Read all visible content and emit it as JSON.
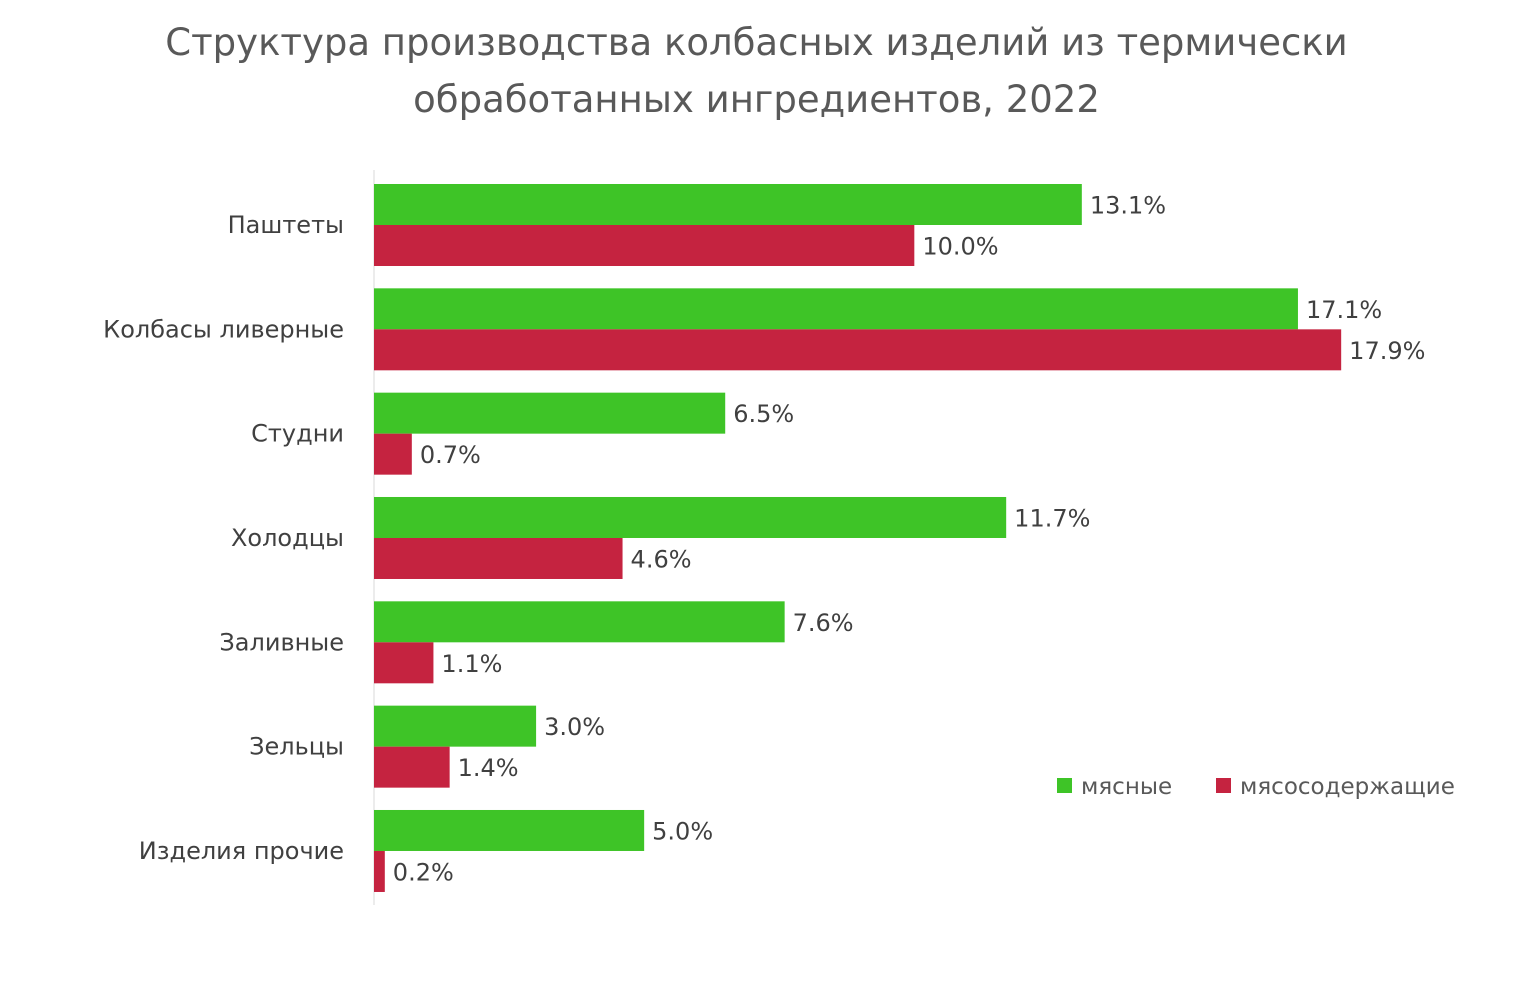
{
  "chart_data": {
    "type": "bar",
    "orientation": "horizontal",
    "title_lines": [
      "Структура производства колбасных изделий из термически",
      "обработанных ингредиентов, 2022"
    ],
    "categories": [
      "Паштеты",
      "Колбасы ливерные",
      "Студни",
      "Холодцы",
      "Заливные",
      "Зельцы",
      "Изделия прочие"
    ],
    "series": [
      {
        "name": "мясные",
        "color": "#3ec427",
        "values": [
          13.1,
          17.1,
          6.5,
          11.7,
          7.6,
          3.0,
          5.0
        ],
        "labels": [
          "13.1%",
          "17.1%",
          "6.5%",
          "11.7%",
          "7.6%",
          "3.0%",
          "5.0%"
        ]
      },
      {
        "name": "мясосодержащие",
        "color": "#c52340",
        "values": [
          10.0,
          17.9,
          0.7,
          4.6,
          1.1,
          1.4,
          0.2
        ],
        "labels": [
          "10.0%",
          "17.9%",
          "0.7%",
          "4.6%",
          "1.1%",
          "1.4%",
          "0.2%"
        ]
      }
    ],
    "xlim": [
      0,
      18.6
    ],
    "unit": "%",
    "grid": false,
    "legend_position": "bottom-right"
  }
}
